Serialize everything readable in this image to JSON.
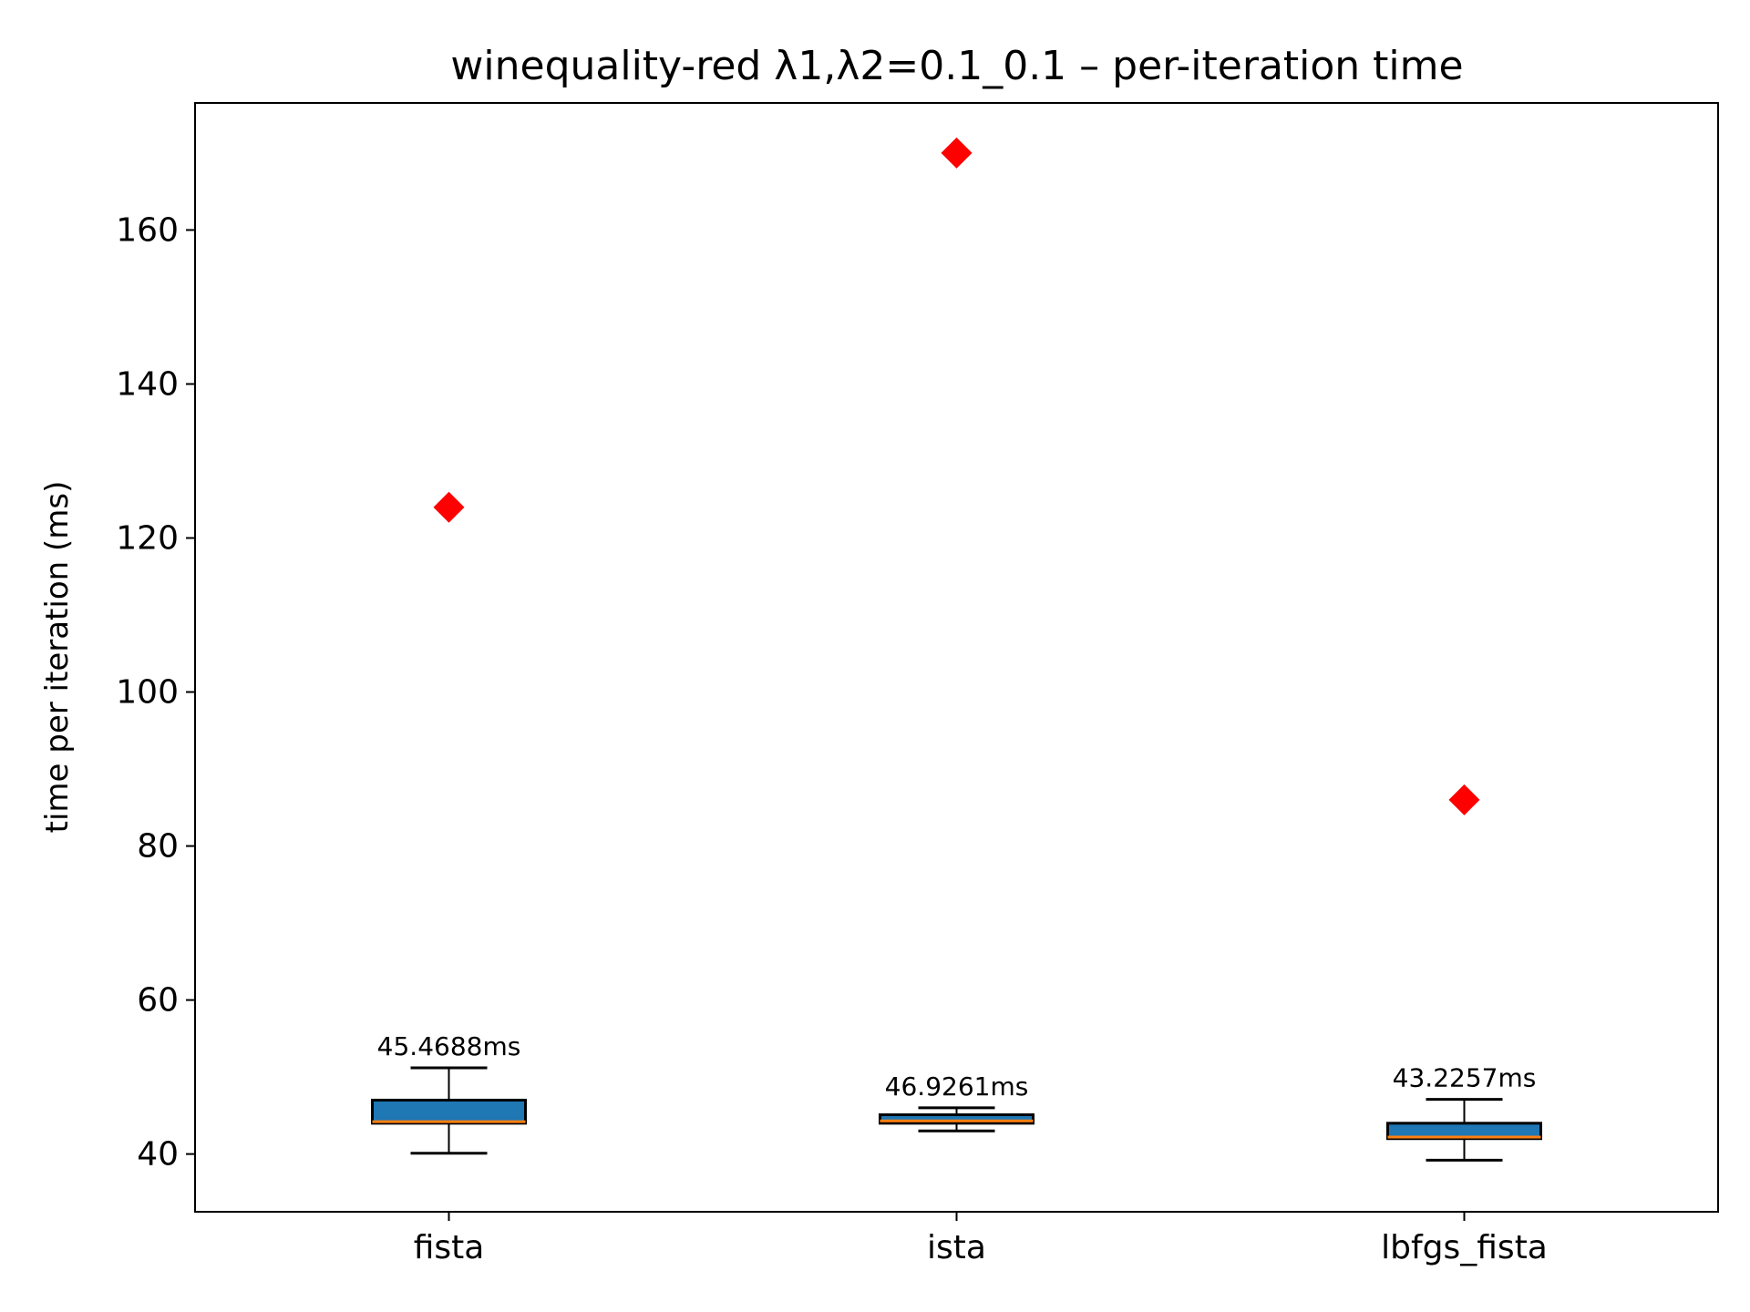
{
  "chart_data": {
    "type": "box",
    "title": "winequality-red   λ1,λ2=0.1_0.1  –  per-iteration time",
    "xlabel": "",
    "ylabel": "time per iteration (ms)",
    "categories": [
      "fista",
      "ista",
      "lbfgs_fista"
    ],
    "ylim": [
      32.5,
      176.5
    ],
    "yticks": [
      40,
      60,
      80,
      100,
      120,
      140,
      160
    ],
    "grid": false,
    "legend": "none",
    "boxes": [
      {
        "category": "fista",
        "whisker_low": 40.1,
        "q1": 44.0,
        "median": 44.2,
        "q3": 47.0,
        "whisker_high": 51.2,
        "outliers": [
          124.0
        ],
        "label": "45.4688ms"
      },
      {
        "category": "ista",
        "whisker_low": 43.0,
        "q1": 44.0,
        "median": 44.3,
        "q3": 45.1,
        "whisker_high": 46.0,
        "outliers": [
          170.0
        ],
        "label": "46.9261ms"
      },
      {
        "category": "lbfgs_fista",
        "whisker_low": 39.2,
        "q1": 42.0,
        "median": 42.2,
        "q3": 44.0,
        "whisker_high": 47.1,
        "outliers": [
          86.0
        ],
        "label": "43.2257ms"
      }
    ],
    "colors": {
      "box_fill": "#1f77b4",
      "median": "#ff7f0e",
      "outlier": "#ff0000",
      "axes": "#000000"
    }
  }
}
